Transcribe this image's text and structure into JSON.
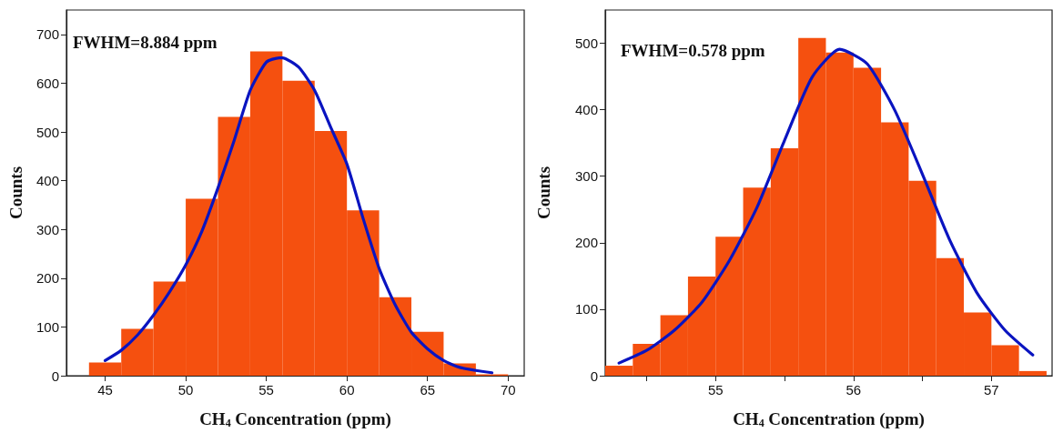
{
  "chart_data": [
    {
      "type": "histogram",
      "xlabel": "CH$_{4}$ Concentration (ppm)",
      "ylabel": "Counts",
      "annotations": [
        "FWHM=8.884 ppm"
      ],
      "xlim": [
        42.6,
        71
      ],
      "ylim": [
        0,
        750
      ],
      "xticks": [
        45,
        50,
        55,
        60,
        65,
        70
      ],
      "yticks": [
        0,
        100,
        200,
        300,
        400,
        500,
        600,
        700
      ],
      "grid": false,
      "series": [
        {
          "color": "#f5500f",
          "bins": [
            44,
            46,
            48,
            50,
            52,
            54,
            56,
            58,
            60,
            62,
            64,
            66,
            68,
            70
          ],
          "values": [
            27,
            96,
            193,
            363,
            531,
            665,
            605,
            502,
            339,
            161,
            90,
            25,
            3
          ]
        },
        {
          "type": "line",
          "color": "#0a14c0",
          "marker": "none",
          "x": [
            45,
            46,
            47,
            48,
            49,
            50,
            51,
            52,
            53,
            54,
            55,
            55.8,
            56,
            57,
            58,
            59,
            60,
            61,
            62,
            63,
            64,
            65,
            66,
            67,
            69
          ],
          "values": [
            31,
            52,
            83,
            124,
            172,
            227,
            296,
            385,
            482,
            585,
            643,
            652,
            652,
            633,
            585,
            509,
            434,
            323,
            220,
            145,
            89,
            55,
            31,
            17,
            6
          ]
        }
      ]
    },
    {
      "type": "histogram",
      "xlabel": "CH$_{4}$ Concentration (ppm)",
      "ylabel": "Counts",
      "annotations": [
        "FWHM=0.578 ppm"
      ],
      "xlim": [
        54.2,
        57.44
      ],
      "ylim": [
        0,
        550
      ],
      "xticks": [
        {
          "value": 54.5,
          "label": null
        },
        55,
        {
          "value": 55.5,
          "label": null
        },
        56,
        {
          "value": 56.5,
          "label": null
        },
        57
      ],
      "yticks": [
        0,
        100,
        200,
        300,
        400,
        500
      ],
      "grid": false,
      "series": [
        {
          "color": "#f5500f",
          "bins": [
            54.2,
            54.4,
            54.6,
            54.8,
            55.0,
            55.2,
            55.4,
            55.6,
            55.8,
            56.0,
            56.2,
            56.4,
            56.6,
            56.8,
            57.0,
            57.2,
            57.4
          ],
          "values": [
            15,
            48,
            91,
            149,
            209,
            283,
            342,
            508,
            486,
            463,
            381,
            293,
            177,
            95,
            46,
            7
          ]
        },
        {
          "type": "line",
          "color": "#0a14c0",
          "marker": "none",
          "x": [
            54.3,
            54.5,
            54.7,
            54.9,
            55.1,
            55.3,
            55.5,
            55.7,
            55.9,
            56.1,
            56.3,
            56.5,
            56.7,
            56.9,
            57.1,
            57.3
          ],
          "values": [
            19,
            38,
            68,
            110,
            173,
            253,
            354,
            449,
            491,
            469,
            399,
            303,
            203,
            123,
            68,
            31
          ]
        }
      ]
    }
  ]
}
